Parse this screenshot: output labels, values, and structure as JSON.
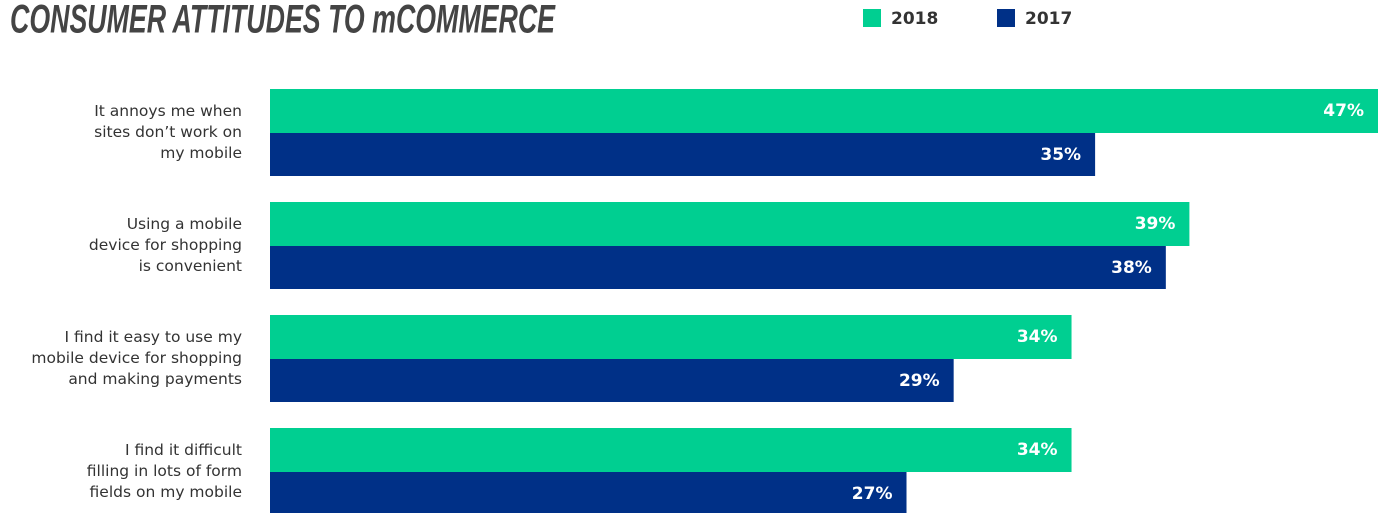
{
  "chart_data": {
    "type": "bar",
    "orientation": "horizontal",
    "title": "CONSUMER ATTITUDES TO mCOMMERCE",
    "categories": [
      "It annoys me when\nsites don’t work on\nmy mobile",
      "Using a mobile\ndevice for shopping\nis convenient",
      "I find it easy to use my\nmobile device for shopping\nand making payments",
      "I find it difficult\nfilling in lots of form\nfields on my mobile"
    ],
    "series": [
      {
        "name": "2018",
        "color": "#00cf91",
        "values": [
          47,
          39,
          34,
          34
        ],
        "value_labels": [
          "47%",
          "39%",
          "34%",
          "34%"
        ]
      },
      {
        "name": "2017",
        "color": "#003087",
        "values": [
          35,
          38,
          29,
          27
        ],
        "value_labels": [
          "35%",
          "38%",
          "29%",
          "27%"
        ]
      }
    ],
    "legend": "top-right"
  }
}
